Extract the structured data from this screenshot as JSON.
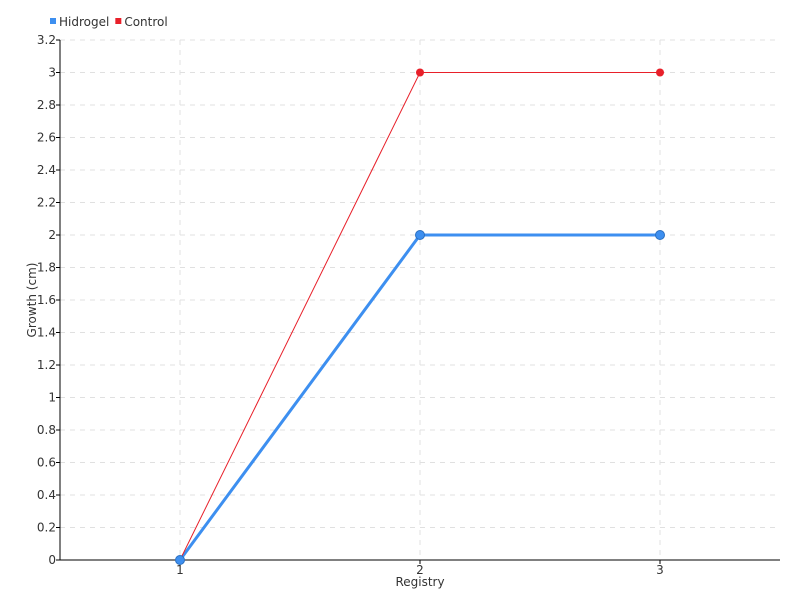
{
  "chart_data": {
    "type": "line",
    "title": "",
    "xlabel": "Registry",
    "ylabel": "Growth (cm)",
    "categories": [
      "1",
      "2",
      "3"
    ],
    "ylim": [
      0,
      3.2
    ],
    "yticks": [
      "0",
      "0.2",
      "0.4",
      "0.6",
      "0.8",
      "1",
      "1.2",
      "1.4",
      "1.6",
      "1.8",
      "2",
      "2.2",
      "2.4",
      "2.6",
      "2.8",
      "3",
      "3.2"
    ],
    "grid": true,
    "legend_position": "top-left",
    "series": [
      {
        "name": "Hidrogel",
        "values": [
          0,
          2,
          2
        ],
        "color": "#3d8ff0"
      },
      {
        "name": "Control",
        "values": [
          0,
          3,
          3
        ],
        "color": "#e8202a"
      }
    ]
  }
}
